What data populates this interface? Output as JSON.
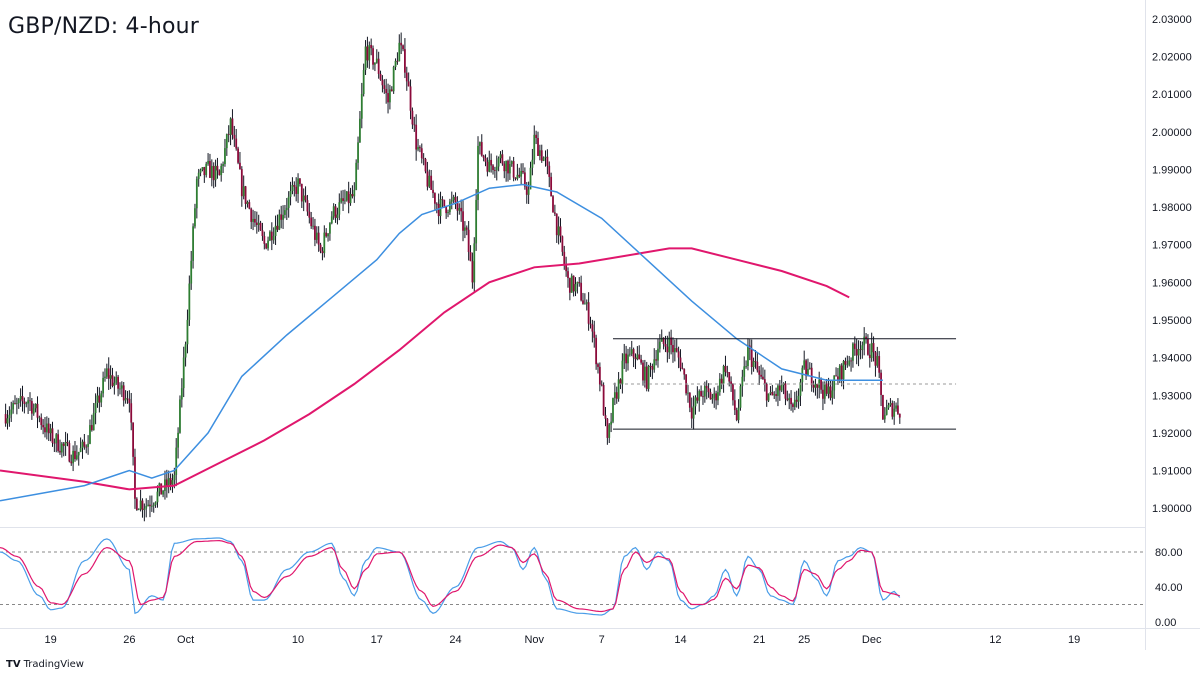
{
  "chart_data": {
    "type": "candlestick",
    "title": "GBP/NZD: 4-hour",
    "brand": "TradingView",
    "brand_logo": "TV",
    "colors": {
      "up": "#2e7d32",
      "down": "#8b0a3a",
      "sma_fast": "#3d8fe0",
      "sma_slow": "#e0176d",
      "stoch_k": "#4a9de8",
      "stoch_d": "#e0176d",
      "level_line": "#131722",
      "dashed_line": "#9a9a9a"
    },
    "price_axis": {
      "min": 1.895,
      "max": 2.035,
      "ticks": [
        "2.03000",
        "2.02000",
        "2.01000",
        "2.00000",
        "1.99000",
        "1.98000",
        "1.97000",
        "1.96000",
        "1.95000",
        "1.94000",
        "1.93000",
        "1.92000",
        "1.91000",
        "1.90000"
      ],
      "tick_values": [
        2.03,
        2.02,
        2.01,
        2.0,
        1.99,
        1.98,
        1.97,
        1.96,
        1.95,
        1.94,
        1.93,
        1.92,
        1.91,
        1.9
      ]
    },
    "x_axis": {
      "labels": [
        "19",
        "26",
        "Oct",
        "10",
        "17",
        "24",
        "Nov",
        "7",
        "14",
        "21",
        "25",
        "Dec",
        "12",
        "19"
      ],
      "label_days": [
        19,
        26,
        31,
        41,
        48,
        55,
        62,
        68,
        75,
        82,
        86,
        92,
        103,
        110
      ],
      "day_start": 14.5,
      "day_end": 116.3
    },
    "candles_anchor": [
      [
        15,
        1.925
      ],
      [
        17,
        1.929
      ],
      [
        19,
        1.919
      ],
      [
        21,
        1.914
      ],
      [
        22,
        1.916
      ],
      [
        24,
        1.936
      ],
      [
        25,
        1.932
      ],
      [
        26,
        1.93
      ],
      [
        26.5,
        1.902
      ],
      [
        27.5,
        1.901
      ],
      [
        29,
        1.905
      ],
      [
        30,
        1.908
      ],
      [
        31,
        1.945
      ],
      [
        32,
        1.987
      ],
      [
        33,
        1.99
      ],
      [
        34,
        1.988
      ],
      [
        35,
        2.002
      ],
      [
        36,
        1.985
      ],
      [
        37,
        1.977
      ],
      [
        38,
        1.97
      ],
      [
        40,
        1.981
      ],
      [
        41,
        1.986
      ],
      [
        42,
        1.977
      ],
      [
        43,
        1.968
      ],
      [
        44,
        1.978
      ],
      [
        45,
        1.981
      ],
      [
        46,
        1.983
      ],
      [
        47,
        2.022
      ],
      [
        48,
        2.018
      ],
      [
        49,
        2.008
      ],
      [
        50,
        2.023
      ],
      [
        50.5,
        2.018
      ],
      [
        51.5,
        1.997
      ],
      [
        52.5,
        1.987
      ],
      [
        53.5,
        1.98
      ],
      [
        55,
        1.981
      ],
      [
        56,
        1.972
      ],
      [
        56.5,
        1.961
      ],
      [
        57,
        1.996
      ],
      [
        58,
        1.991
      ],
      [
        59,
        1.993
      ],
      [
        60,
        1.99
      ],
      [
        61,
        1.987
      ],
      [
        61.5,
        1.984
      ],
      [
        62,
        1.998
      ],
      [
        63,
        1.992
      ],
      [
        64,
        1.975
      ],
      [
        65,
        1.96
      ],
      [
        66,
        1.958
      ],
      [
        67,
        1.95
      ],
      [
        68,
        1.931
      ],
      [
        68.5,
        1.917
      ],
      [
        69,
        1.927
      ],
      [
        70,
        1.939
      ],
      [
        71,
        1.941
      ],
      [
        72,
        1.934
      ],
      [
        73,
        1.943
      ],
      [
        74,
        1.944
      ],
      [
        75,
        1.939
      ],
      [
        76,
        1.926
      ],
      [
        77,
        1.931
      ],
      [
        78,
        1.929
      ],
      [
        79,
        1.938
      ],
      [
        80,
        1.924
      ],
      [
        81,
        1.942
      ],
      [
        82,
        1.935
      ],
      [
        83,
        1.929
      ],
      [
        84,
        1.932
      ],
      [
        85,
        1.925
      ],
      [
        86,
        1.937
      ],
      [
        87,
        1.934
      ],
      [
        88,
        1.93
      ],
      [
        89,
        1.935
      ],
      [
        90,
        1.94
      ],
      [
        91,
        1.944
      ],
      [
        92,
        1.942
      ],
      [
        92.5,
        1.938
      ],
      [
        93,
        1.925
      ],
      [
        94,
        1.927
      ],
      [
        94.5,
        1.926
      ]
    ],
    "sma_fast": [
      [
        14.5,
        1.902
      ],
      [
        22,
        1.906
      ],
      [
        26,
        1.91
      ],
      [
        28,
        1.908
      ],
      [
        30,
        1.91
      ],
      [
        33,
        1.92
      ],
      [
        36,
        1.935
      ],
      [
        40,
        1.946
      ],
      [
        44,
        1.956
      ],
      [
        48,
        1.966
      ],
      [
        50,
        1.973
      ],
      [
        52,
        1.978
      ],
      [
        55,
        1.981
      ],
      [
        58,
        1.985
      ],
      [
        61,
        1.986
      ],
      [
        64,
        1.984
      ],
      [
        68,
        1.977
      ],
      [
        72,
        1.966
      ],
      [
        76,
        1.955
      ],
      [
        80,
        1.945
      ],
      [
        84,
        1.937
      ],
      [
        88,
        1.934
      ],
      [
        90,
        1.934
      ],
      [
        93,
        1.934
      ]
    ],
    "sma_slow": [
      [
        14.5,
        1.91
      ],
      [
        22,
        1.907
      ],
      [
        26,
        1.905
      ],
      [
        30,
        1.906
      ],
      [
        34,
        1.912
      ],
      [
        38,
        1.918
      ],
      [
        42,
        1.925
      ],
      [
        46,
        1.933
      ],
      [
        50,
        1.942
      ],
      [
        54,
        1.952
      ],
      [
        58,
        1.96
      ],
      [
        62,
        1.964
      ],
      [
        66,
        1.965
      ],
      [
        70,
        1.967
      ],
      [
        74,
        1.969
      ],
      [
        76,
        1.969
      ],
      [
        80,
        1.966
      ],
      [
        84,
        1.963
      ],
      [
        88,
        1.959
      ],
      [
        90,
        1.956
      ]
    ],
    "range_box": {
      "top": 1.945,
      "bottom": 1.921,
      "mid": 1.933,
      "x_start": 69,
      "x_end": 99.5
    },
    "oscillator": {
      "type": "stochastic",
      "ticks": [
        "80.00",
        "40.00",
        "0.00"
      ],
      "tick_values": [
        80,
        40,
        0
      ],
      "levels": [
        80,
        20
      ],
      "k": [
        [
          14.5,
          80
        ],
        [
          16,
          70
        ],
        [
          18,
          30
        ],
        [
          19,
          14
        ],
        [
          20,
          16
        ],
        [
          22,
          70
        ],
        [
          24,
          95
        ],
        [
          26,
          60
        ],
        [
          26.5,
          10
        ],
        [
          28,
          30
        ],
        [
          29,
          25
        ],
        [
          30,
          90
        ],
        [
          32,
          95
        ],
        [
          34,
          96
        ],
        [
          35,
          92
        ],
        [
          36,
          70
        ],
        [
          37,
          25
        ],
        [
          38,
          25
        ],
        [
          40,
          60
        ],
        [
          42,
          80
        ],
        [
          44,
          90
        ],
        [
          45,
          50
        ],
        [
          46,
          30
        ],
        [
          47,
          70
        ],
        [
          48,
          85
        ],
        [
          50,
          80
        ],
        [
          52,
          25
        ],
        [
          53,
          10
        ],
        [
          55,
          40
        ],
        [
          57,
          85
        ],
        [
          59,
          92
        ],
        [
          60,
          85
        ],
        [
          61,
          60
        ],
        [
          62,
          85
        ],
        [
          63,
          50
        ],
        [
          64,
          15
        ],
        [
          66,
          10
        ],
        [
          68,
          8
        ],
        [
          69,
          15
        ],
        [
          70,
          75
        ],
        [
          71,
          85
        ],
        [
          72,
          60
        ],
        [
          73,
          80
        ],
        [
          74,
          70
        ],
        [
          75,
          25
        ],
        [
          76,
          15
        ],
        [
          77,
          20
        ],
        [
          78,
          30
        ],
        [
          79,
          60
        ],
        [
          80,
          30
        ],
        [
          81,
          75
        ],
        [
          82,
          60
        ],
        [
          83,
          30
        ],
        [
          84,
          25
        ],
        [
          85,
          20
        ],
        [
          86,
          70
        ],
        [
          87,
          50
        ],
        [
          88,
          30
        ],
        [
          89,
          70
        ],
        [
          90,
          75
        ],
        [
          91,
          85
        ],
        [
          92,
          80
        ],
        [
          93,
          25
        ],
        [
          94,
          35
        ],
        [
          94.5,
          28
        ]
      ],
      "d": [
        [
          14.5,
          85
        ],
        [
          16,
          75
        ],
        [
          18,
          40
        ],
        [
          19,
          22
        ],
        [
          20,
          20
        ],
        [
          22,
          55
        ],
        [
          24,
          85
        ],
        [
          26,
          70
        ],
        [
          27,
          20
        ],
        [
          28,
          25
        ],
        [
          29,
          28
        ],
        [
          30,
          75
        ],
        [
          32,
          92
        ],
        [
          34,
          93
        ],
        [
          35,
          90
        ],
        [
          36,
          75
        ],
        [
          37,
          35
        ],
        [
          38,
          28
        ],
        [
          40,
          52
        ],
        [
          42,
          75
        ],
        [
          44,
          85
        ],
        [
          45,
          60
        ],
        [
          46,
          38
        ],
        [
          47,
          60
        ],
        [
          48,
          78
        ],
        [
          50,
          80
        ],
        [
          52,
          35
        ],
        [
          53,
          18
        ],
        [
          55,
          35
        ],
        [
          57,
          75
        ],
        [
          59,
          88
        ],
        [
          60,
          85
        ],
        [
          61,
          68
        ],
        [
          62,
          78
        ],
        [
          63,
          55
        ],
        [
          64,
          25
        ],
        [
          66,
          15
        ],
        [
          68,
          12
        ],
        [
          69,
          15
        ],
        [
          70,
          60
        ],
        [
          71,
          80
        ],
        [
          72,
          68
        ],
        [
          73,
          75
        ],
        [
          74,
          72
        ],
        [
          75,
          35
        ],
        [
          76,
          20
        ],
        [
          77,
          20
        ],
        [
          78,
          26
        ],
        [
          79,
          50
        ],
        [
          80,
          38
        ],
        [
          81,
          65
        ],
        [
          82,
          62
        ],
        [
          83,
          40
        ],
        [
          84,
          30
        ],
        [
          85,
          24
        ],
        [
          86,
          60
        ],
        [
          87,
          55
        ],
        [
          88,
          38
        ],
        [
          89,
          60
        ],
        [
          90,
          70
        ],
        [
          91,
          82
        ],
        [
          92,
          80
        ],
        [
          93,
          35
        ],
        [
          94,
          32
        ],
        [
          94.5,
          30
        ]
      ]
    }
  }
}
